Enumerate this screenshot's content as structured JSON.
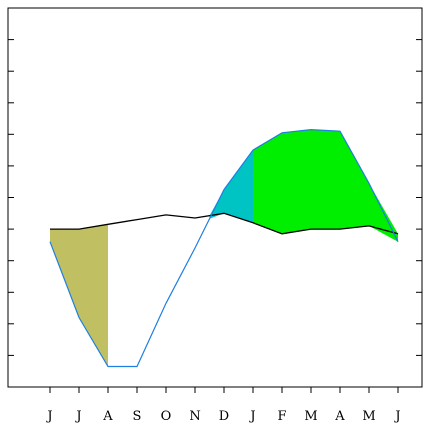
{
  "chart_data": {
    "type": "area",
    "categories": [
      "J",
      "J",
      "A",
      "S",
      "O",
      "N",
      "D",
      "J",
      "F",
      "M",
      "A",
      "M",
      "J"
    ],
    "ylim": [
      -10,
      14
    ],
    "grid": false,
    "legend": "none",
    "series": [
      {
        "values": [
          0.0,
          0.0,
          0.3,
          0.6,
          0.9,
          0.7,
          1.0,
          0.4,
          -0.3,
          0.0,
          0.0,
          0.2,
          -0.3
        ],
        "color": "#000000"
      },
      {
        "values": [
          -0.8,
          -5.6,
          -8.7,
          -8.7,
          -4.7,
          -1.2,
          2.5,
          5.0,
          6.1,
          6.3,
          6.2,
          2.9,
          -0.8
        ],
        "color": "#1f7fe0"
      }
    ],
    "shaded_regions": [
      {
        "from_index": 0,
        "to_index": 2,
        "fill": "#c0c063",
        "note_color": "olive"
      },
      {
        "from_index": 5.5,
        "to_index": 7,
        "fill": "#00c4c4",
        "note_color": "teal"
      },
      {
        "from_index": 7,
        "to_index": 12,
        "fill": "#00ee00",
        "note_color": "green"
      }
    ]
  }
}
